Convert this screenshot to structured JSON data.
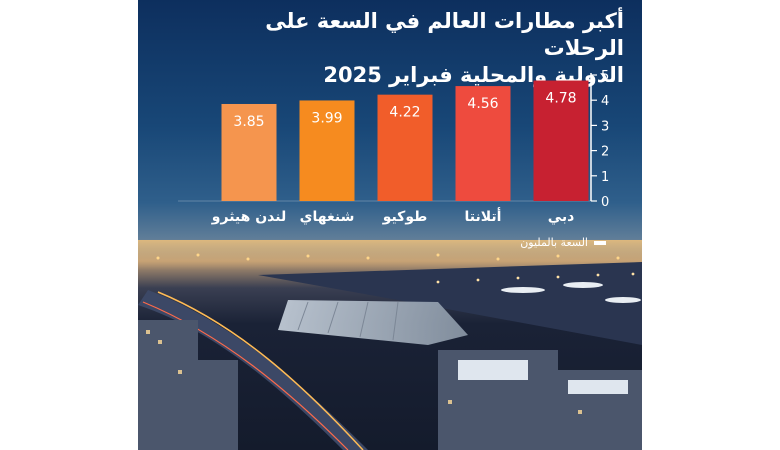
{
  "title_lines": [
    "أكبر مطارات العالم في السعة على الرحلات",
    "الدولية والمحلية فبراير 2025"
  ],
  "legend_label": "السعة بالمليون",
  "colors": {
    "bars": [
      "#c72131",
      "#ee4b3e",
      "#f15d2a",
      "#f68b1f",
      "#f5954e"
    ],
    "axis": "#ffffff"
  },
  "chart_data": {
    "type": "bar",
    "categories": [
      "دبي",
      "أتلانتا",
      "طوكيو",
      "شنغهاي",
      "لندن هيثرو"
    ],
    "values": [
      4.78,
      4.56,
      4.22,
      3.99,
      3.85
    ],
    "series": [
      {
        "name": "السعة بالمليون",
        "values": [
          4.78,
          4.56,
          4.22,
          3.99,
          3.85
        ]
      }
    ],
    "ylim": [
      0,
      5
    ],
    "yticks": [
      0,
      1,
      2,
      3,
      4,
      5
    ],
    "title": "أكبر مطارات العالم في السعة على الرحلات الدولية والمحلية فبراير 2025",
    "xlabel": "",
    "ylabel": "",
    "grid": false,
    "legend_position": "bottom-right"
  }
}
